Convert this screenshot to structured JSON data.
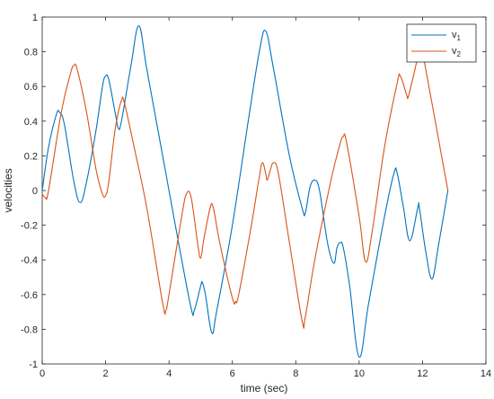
{
  "chart_data": {
    "type": "line",
    "title": "",
    "xlabel": "time (sec)",
    "ylabel": "velocities",
    "xlim": [
      0,
      14
    ],
    "ylim": [
      -1,
      1
    ],
    "xticks": [
      0,
      2,
      4,
      6,
      8,
      10,
      12,
      14
    ],
    "yticks": [
      -1,
      -0.8,
      -0.6,
      -0.4,
      -0.2,
      0,
      0.2,
      0.4,
      0.6,
      0.8,
      1
    ],
    "grid": false,
    "legend": {
      "position": "top-right",
      "entries": [
        {
          "label": "v",
          "subscript": "1"
        },
        {
          "label": "v",
          "subscript": "2"
        }
      ]
    },
    "series": [
      {
        "name": "v1",
        "color": "#0072BD",
        "points": [
          [
            0.0,
            0.0
          ],
          [
            0.2,
            0.25
          ],
          [
            0.45,
            0.44
          ],
          [
            0.55,
            0.45
          ],
          [
            0.7,
            0.38
          ],
          [
            1.0,
            0.05
          ],
          [
            1.2,
            -0.07
          ],
          [
            1.4,
            0.05
          ],
          [
            1.7,
            0.35
          ],
          [
            1.9,
            0.6
          ],
          [
            2.0,
            0.66
          ],
          [
            2.1,
            0.64
          ],
          [
            2.3,
            0.45
          ],
          [
            2.4,
            0.36
          ],
          [
            2.5,
            0.4
          ],
          [
            2.8,
            0.72
          ],
          [
            3.05,
            0.95
          ],
          [
            3.3,
            0.7
          ],
          [
            3.8,
            0.2
          ],
          [
            4.3,
            -0.3
          ],
          [
            4.7,
            -0.68
          ],
          [
            4.8,
            -0.69
          ],
          [
            5.0,
            -0.55
          ],
          [
            5.05,
            -0.53
          ],
          [
            5.15,
            -0.6
          ],
          [
            5.35,
            -0.82
          ],
          [
            5.5,
            -0.7
          ],
          [
            6.0,
            -0.2
          ],
          [
            6.5,
            0.4
          ],
          [
            6.85,
            0.8
          ],
          [
            7.05,
            0.92
          ],
          [
            7.3,
            0.7
          ],
          [
            7.8,
            0.2
          ],
          [
            8.2,
            -0.1
          ],
          [
            8.3,
            -0.13
          ],
          [
            8.45,
            0.02
          ],
          [
            8.6,
            0.06
          ],
          [
            8.75,
            0.0
          ],
          [
            9.0,
            -0.3
          ],
          [
            9.2,
            -0.42
          ],
          [
            9.3,
            -0.33
          ],
          [
            9.4,
            -0.3
          ],
          [
            9.5,
            -0.33
          ],
          [
            9.7,
            -0.55
          ],
          [
            10.0,
            -0.96
          ],
          [
            10.3,
            -0.65
          ],
          [
            10.8,
            -0.15
          ],
          [
            11.1,
            0.1
          ],
          [
            11.2,
            0.1
          ],
          [
            11.4,
            -0.1
          ],
          [
            11.6,
            -0.29
          ],
          [
            11.85,
            -0.1
          ],
          [
            11.9,
            -0.1
          ],
          [
            12.1,
            -0.35
          ],
          [
            12.3,
            -0.51
          ],
          [
            12.5,
            -0.32
          ],
          [
            12.8,
            0.0
          ]
        ]
      },
      {
        "name": "v2",
        "color": "#D95319",
        "points": [
          [
            0.0,
            -0.02
          ],
          [
            0.1,
            -0.04
          ],
          [
            0.2,
            0.0
          ],
          [
            0.6,
            0.45
          ],
          [
            0.9,
            0.68
          ],
          [
            1.0,
            0.72
          ],
          [
            1.1,
            0.7
          ],
          [
            1.4,
            0.45
          ],
          [
            1.7,
            0.12
          ],
          [
            1.9,
            -0.02
          ],
          [
            2.0,
            -0.03
          ],
          [
            2.1,
            0.05
          ],
          [
            2.3,
            0.35
          ],
          [
            2.5,
            0.52
          ],
          [
            2.6,
            0.5
          ],
          [
            2.9,
            0.25
          ],
          [
            3.3,
            -0.1
          ],
          [
            3.8,
            -0.65
          ],
          [
            3.9,
            -0.69
          ],
          [
            4.0,
            -0.6
          ],
          [
            4.4,
            -0.15
          ],
          [
            4.55,
            -0.02
          ],
          [
            4.7,
            -0.04
          ],
          [
            4.9,
            -0.3
          ],
          [
            5.0,
            -0.39
          ],
          [
            5.1,
            -0.28
          ],
          [
            5.3,
            -0.1
          ],
          [
            5.4,
            -0.1
          ],
          [
            5.6,
            -0.3
          ],
          [
            6.0,
            -0.62
          ],
          [
            6.1,
            -0.64
          ],
          [
            6.2,
            -0.6
          ],
          [
            6.6,
            -0.2
          ],
          [
            6.85,
            0.08
          ],
          [
            6.95,
            0.16
          ],
          [
            7.05,
            0.1
          ],
          [
            7.1,
            0.06
          ],
          [
            7.2,
            0.12
          ],
          [
            7.3,
            0.16
          ],
          [
            7.45,
            0.1
          ],
          [
            7.8,
            -0.3
          ],
          [
            8.2,
            -0.75
          ],
          [
            8.3,
            -0.73
          ],
          [
            8.6,
            -0.4
          ],
          [
            9.1,
            0.05
          ],
          [
            9.4,
            0.27
          ],
          [
            9.5,
            0.31
          ],
          [
            9.6,
            0.28
          ],
          [
            10.0,
            -0.15
          ],
          [
            10.2,
            -0.41
          ],
          [
            10.4,
            -0.25
          ],
          [
            10.8,
            0.25
          ],
          [
            11.2,
            0.62
          ],
          [
            11.3,
            0.66
          ],
          [
            11.5,
            0.55
          ],
          [
            11.55,
            0.54
          ],
          [
            11.7,
            0.65
          ],
          [
            11.95,
            0.82
          ],
          [
            12.1,
            0.7
          ],
          [
            12.6,
            0.2
          ],
          [
            12.8,
            0.0
          ]
        ]
      }
    ]
  }
}
